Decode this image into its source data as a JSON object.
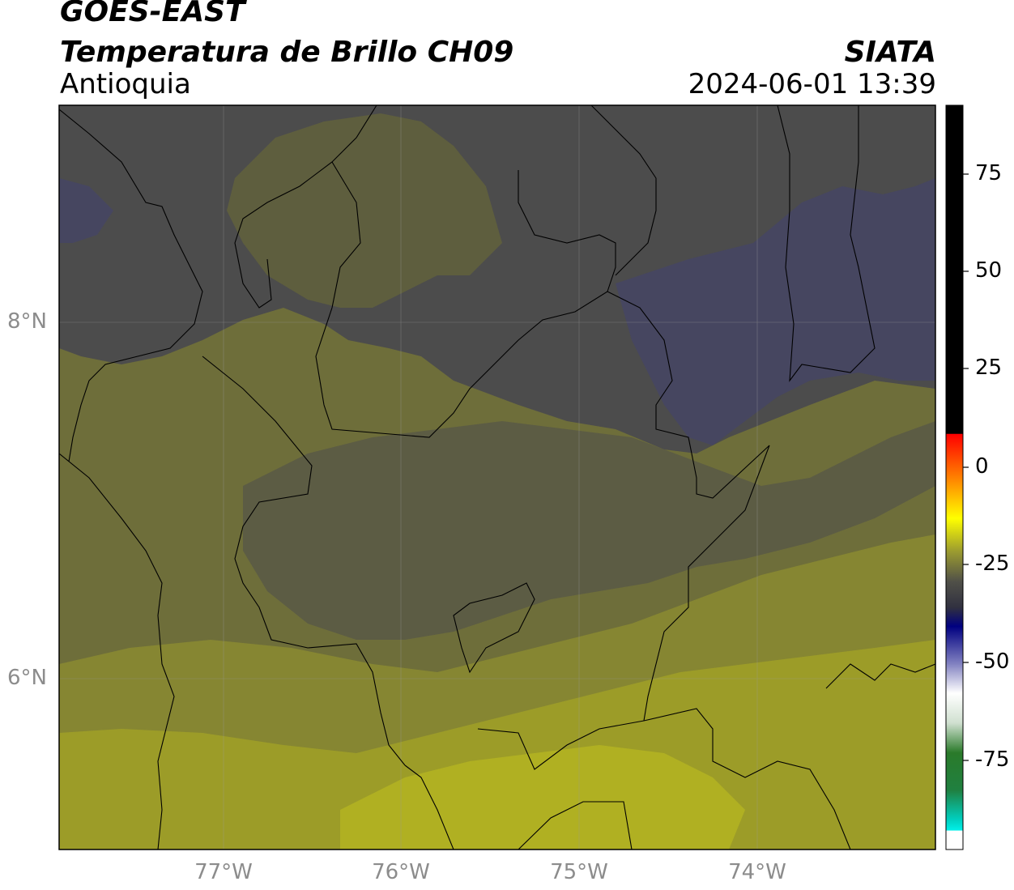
{
  "header": {
    "satellite": "GOES-EAST",
    "product": "Temperatura de Brillo CH09",
    "region": "Antioquia",
    "agency": "SIATA",
    "datetime": "2024-06-01 13:39"
  },
  "map": {
    "lat_labels": [
      "8°N",
      "6°N"
    ],
    "lon_labels": [
      "77°W",
      "76°W",
      "75°W",
      "74°W"
    ],
    "legend": {
      "tick_labels": [
        "75",
        "50",
        "25",
        "0",
        "-25",
        "-50",
        "-75"
      ],
      "colors": {
        "warm_black": "#000000",
        "red": "#ff2000",
        "orange": "#ff9000",
        "yellow": "#ffff00",
        "olive": "#8a8a30",
        "gray": "#404048",
        "navy": "#000080",
        "white": "#ffffff",
        "green": "#2a7a2a",
        "cyan": "#00e8e0"
      }
    },
    "field_colors": {
      "cold_cloud": "#464660",
      "dark_gray": "#4c4c4c",
      "gray_olive": "#5c5c44",
      "olive": "#6e6e3a",
      "olive_light": "#868632",
      "yellow_olive": "#9c9c28",
      "bright_yellow": "#b0b022"
    }
  }
}
